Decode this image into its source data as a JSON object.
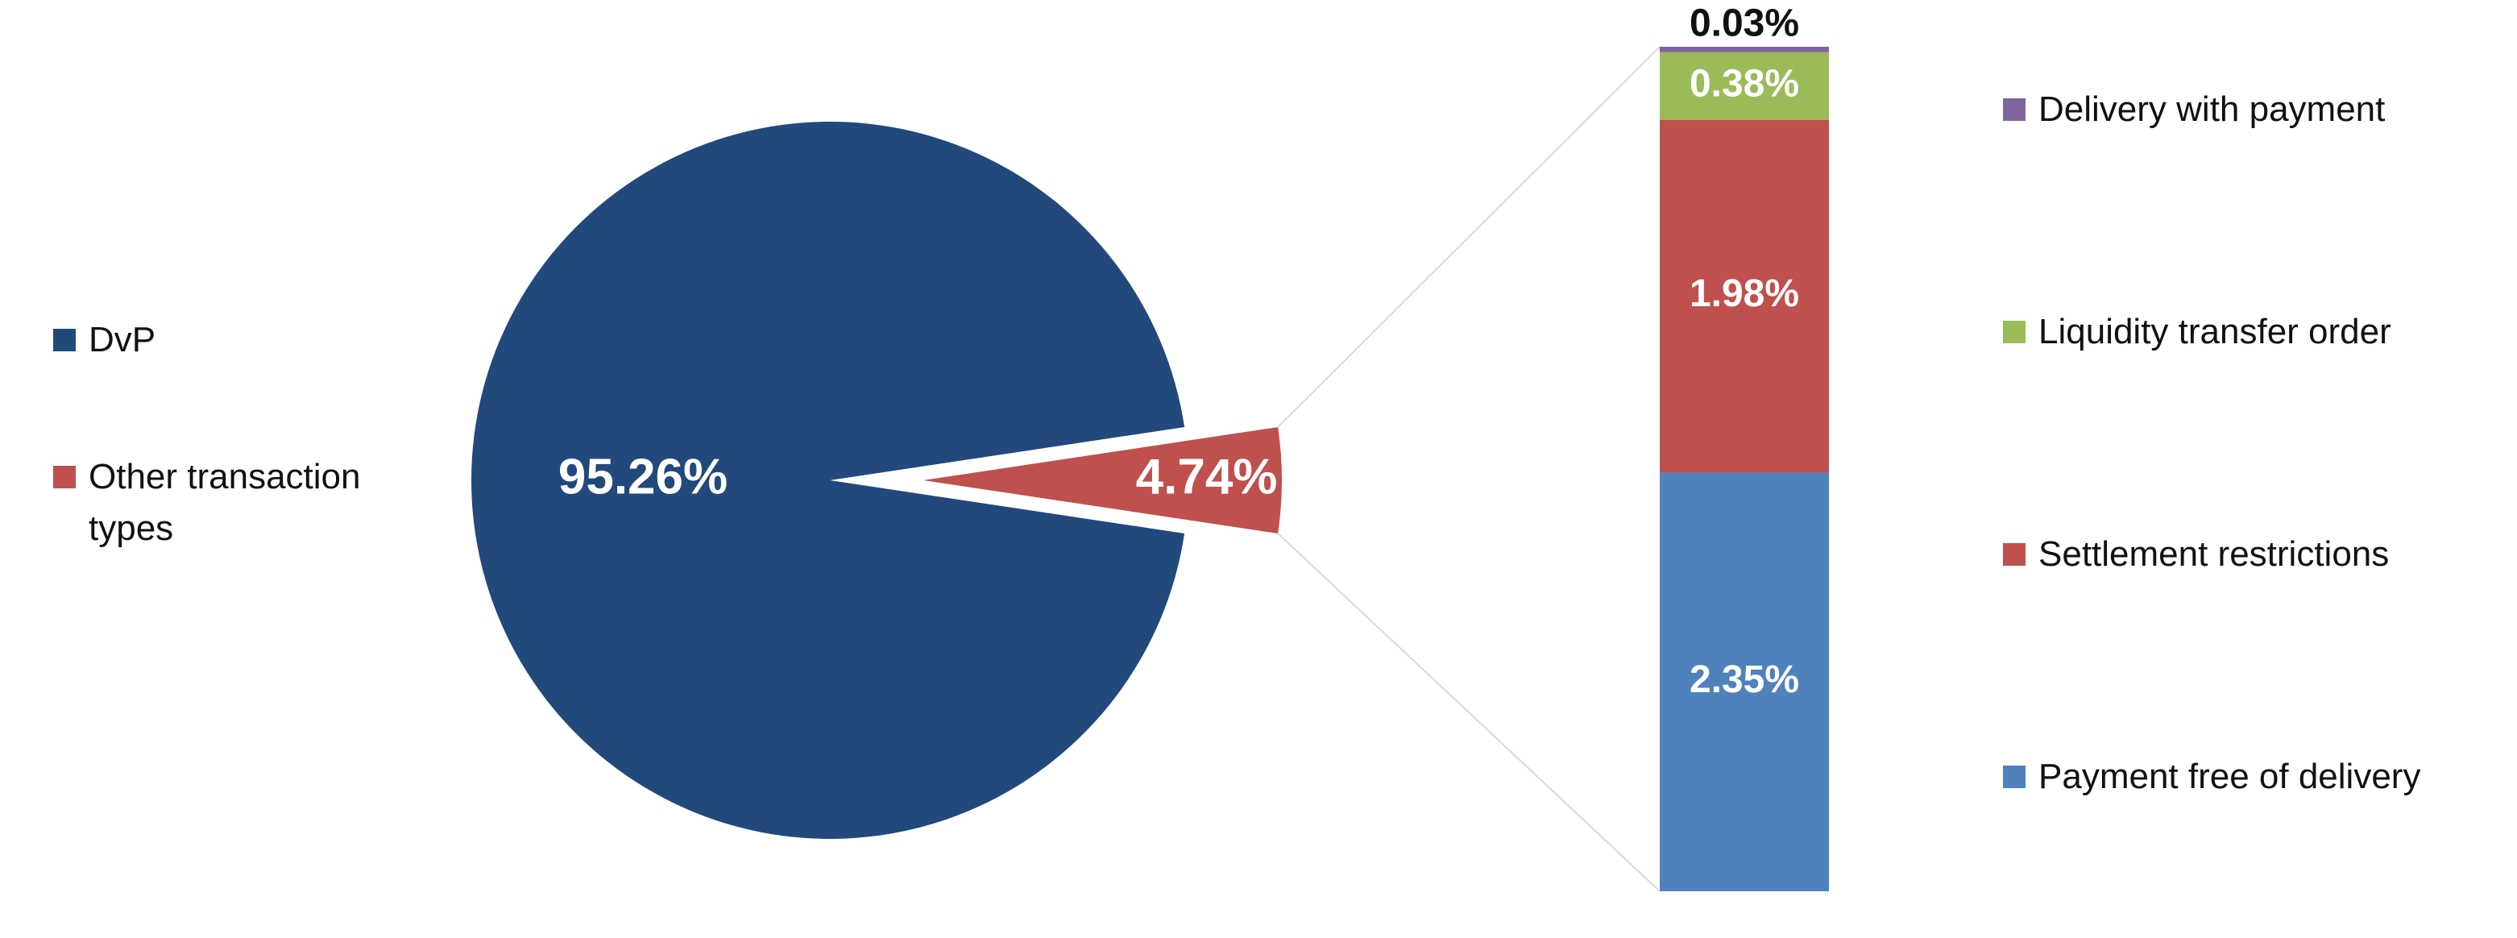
{
  "chart_data": [
    {
      "type": "pie",
      "slices": [
        {
          "label": "DvP",
          "value": 95.26,
          "display": "95.26%",
          "color": "#21497c"
        },
        {
          "label": "Other transaction types",
          "value": 4.74,
          "display": "4.74%",
          "color": "#c0504d",
          "exploded": true
        }
      ],
      "legend": {
        "position": "left",
        "entries": [
          "DvP",
          "Other transaction types"
        ]
      }
    },
    {
      "type": "bar",
      "stacked": true,
      "breakdown_of": "Other transaction types",
      "series": [
        {
          "name": "Payment free of delivery",
          "value": 2.35,
          "display": "2.35%",
          "color": "#4f81bd"
        },
        {
          "name": "Settlement restrictions",
          "value": 1.98,
          "display": "1.98%",
          "color": "#c0504d"
        },
        {
          "name": "Liquidity transfer order",
          "value": 0.38,
          "display": "0.38%",
          "color": "#9bbb59"
        },
        {
          "name": "Delivery with payment",
          "value": 0.03,
          "display": "0.03%",
          "color": "#8064a2"
        }
      ],
      "legend": {
        "position": "right",
        "entries": [
          "Delivery with payment",
          "Liquidity transfer order",
          "Settlement restrictions",
          "Payment free of delivery"
        ]
      }
    }
  ]
}
